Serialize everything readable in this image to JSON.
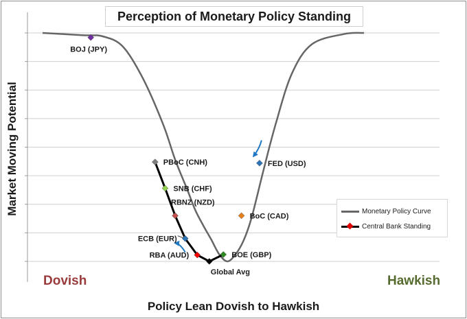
{
  "title": "Perception of Monetary Policy Standing",
  "chart_data": {
    "type": "line",
    "title": "Perception of Monetary Policy Standing",
    "xlabel": "Policy Lean Dovish to Hawkish",
    "ylabel": "Market Moving Potential",
    "x_range": [
      0,
      100
    ],
    "y_range": [
      0,
      10
    ],
    "grid": "horizontal",
    "legend_position": "right",
    "extreme_labels": {
      "left": "Dovish",
      "right": "Hawkish"
    },
    "legend": {
      "curve": "Monetary Policy Curve",
      "standing": "Central Bank Standing"
    },
    "colors": {
      "curve": "#666666",
      "standing_line": "#000000",
      "arrow": "#1f78c1",
      "gridline": "#cfcfcf",
      "dovish": "#9a3b3b",
      "hawkish": "#556b2f"
    },
    "curve_points": [
      {
        "x": 0,
        "y": 10.0
      },
      {
        "x": 10,
        "y": 9.9
      },
      {
        "x": 15,
        "y": 9.85
      },
      {
        "x": 20,
        "y": 9.4
      },
      {
        "x": 25,
        "y": 8.0
      },
      {
        "x": 30,
        "y": 6.0
      },
      {
        "x": 33,
        "y": 4.45
      },
      {
        "x": 36,
        "y": 3.15
      },
      {
        "x": 38,
        "y": 2.25
      },
      {
        "x": 40,
        "y": 1.57
      },
      {
        "x": 42,
        "y": 0.95
      },
      {
        "x": 44,
        "y": 0.3
      },
      {
        "x": 46,
        "y": 0.0
      },
      {
        "x": 48,
        "y": 0.3
      },
      {
        "x": 50,
        "y": 0.9
      },
      {
        "x": 52,
        "y": 1.9
      },
      {
        "x": 55,
        "y": 4.0
      },
      {
        "x": 58,
        "y": 6.0
      },
      {
        "x": 62,
        "y": 8.2
      },
      {
        "x": 67,
        "y": 9.5
      },
      {
        "x": 75,
        "y": 9.95
      },
      {
        "x": 80,
        "y": 10.0
      }
    ],
    "standing_path": [
      "PBoC (CNH)",
      "SNB (CHF)",
      "RBNZ (NZD)",
      "ECB (EUR)",
      "RBA (AUD)",
      "Global Avg",
      "BOE (GBP)"
    ],
    "points": [
      {
        "label": "BOJ (JPY)",
        "x": 12,
        "y": 9.8,
        "color": "#7030a0",
        "label_pos": "below-left"
      },
      {
        "label": "PBoC (CNH)",
        "x": 28,
        "y": 4.35,
        "color": "#7f7f7f",
        "label_pos": "right"
      },
      {
        "label": "SNB (CHF)",
        "x": 30.5,
        "y": 3.2,
        "color": "#92d050",
        "label_pos": "right"
      },
      {
        "label": "RBNZ (NZD)",
        "x": 33,
        "y": 2.0,
        "color": "#c0504d",
        "label_pos": "above-right"
      },
      {
        "label": "ECB (EUR)",
        "x": 35.5,
        "y": 1.0,
        "color": "#2e75b6",
        "label_pos": "left"
      },
      {
        "label": "RBA (AUD)",
        "x": 38.5,
        "y": 0.28,
        "color": "#ff0000",
        "label_pos": "left"
      },
      {
        "label": "Global Avg",
        "x": 41.5,
        "y": 0.0,
        "color": "#000000",
        "label_pos": "below"
      },
      {
        "label": "BOE (GBP)",
        "x": 45,
        "y": 0.3,
        "color": "#2e8b22",
        "label_pos": "right"
      },
      {
        "label": "BoC (CAD)",
        "x": 49.5,
        "y": 2.0,
        "color": "#e6821e",
        "label_pos": "right"
      },
      {
        "label": "FED (USD)",
        "x": 54,
        "y": 4.3,
        "color": "#2e75b6",
        "label_pos": "right"
      }
    ],
    "annotations": [
      {
        "type": "arrow",
        "from": {
          "x": 54.5,
          "y": 5.3
        },
        "to": {
          "x": 52.5,
          "y": 4.6
        },
        "note": "FED moving toward dovish"
      },
      {
        "type": "arrow",
        "from": {
          "x": 35.5,
          "y": 0.4
        },
        "to": {
          "x": 33,
          "y": 0.8
        },
        "note": "ECB moving toward dovish"
      }
    ]
  }
}
